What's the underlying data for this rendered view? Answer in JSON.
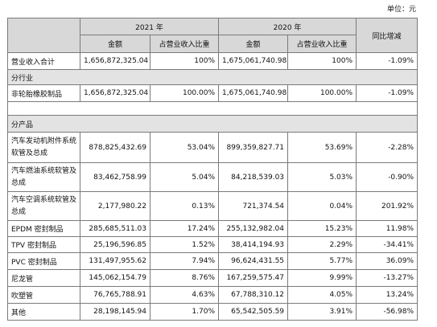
{
  "unit_label": "单位：元",
  "header": {
    "year_2021": "2021 年",
    "year_2020": "2020 年",
    "yoy": "同比增减",
    "amount": "金额",
    "ratio": "占营业收入比重"
  },
  "total": {
    "label": "营业收入合计",
    "amt_2021": "1,656,872,325.04",
    "pct_2021": "100%",
    "amt_2020": "1,675,061,740.98",
    "pct_2020": "100%",
    "yoy": "-1.09%"
  },
  "industry_section": "分行业",
  "industry_rows": [
    {
      "label": "非轮胎橡胶制品",
      "amt_2021": "1,656,872,325.04",
      "pct_2021": "100.00%",
      "amt_2020": "1,675,061,740.98",
      "pct_2020": "100.00%",
      "yoy": "-1.09%"
    }
  ],
  "product_section": "分产品",
  "product_rows": [
    {
      "label": "汽车发动机附件系统软管及总成",
      "amt_2021": "878,825,432.69",
      "pct_2021": "53.04%",
      "amt_2020": "899,359,827.71",
      "pct_2020": "53.69%",
      "yoy": "-2.28%"
    },
    {
      "label": "汽车燃油系统软管及总成",
      "amt_2021": "83,462,758.99",
      "pct_2021": "5.04%",
      "amt_2020": "84,218,539.03",
      "pct_2020": "5.03%",
      "yoy": "-0.90%"
    },
    {
      "label": "汽车空调系统软管及总成",
      "amt_2021": "2,177,980.22",
      "pct_2021": "0.13%",
      "amt_2020": "721,374.54",
      "pct_2020": "0.04%",
      "yoy": "201.92%"
    },
    {
      "label": "EPDM 密封制品",
      "amt_2021": "285,685,511.03",
      "pct_2021": "17.24%",
      "amt_2020": "255,132,982.04",
      "pct_2020": "15.23%",
      "yoy": "11.98%"
    },
    {
      "label": "TPV 密封制品",
      "amt_2021": "25,196,596.85",
      "pct_2021": "1.52%",
      "amt_2020": "38,414,194.93",
      "pct_2020": "2.29%",
      "yoy": "-34.41%"
    },
    {
      "label": "PVC 密封制品",
      "amt_2021": "131,497,955.62",
      "pct_2021": "7.94%",
      "amt_2020": "96,624,431.55",
      "pct_2020": "5.77%",
      "yoy": "36.09%"
    },
    {
      "label": "尼龙管",
      "amt_2021": "145,062,154.79",
      "pct_2021": "8.76%",
      "amt_2020": "167,259,575.47",
      "pct_2020": "9.99%",
      "yoy": "-13.27%"
    },
    {
      "label": "吹塑管",
      "amt_2021": "76,765,788.91",
      "pct_2021": "4.63%",
      "amt_2020": "67,788,310.12",
      "pct_2020": "4.05%",
      "yoy": "13.24%"
    },
    {
      "label": "其他",
      "amt_2021": "28,198,145.94",
      "pct_2021": "1.70%",
      "amt_2020": "65,542,505.59",
      "pct_2020": "3.91%",
      "yoy": "-56.98%"
    }
  ]
}
